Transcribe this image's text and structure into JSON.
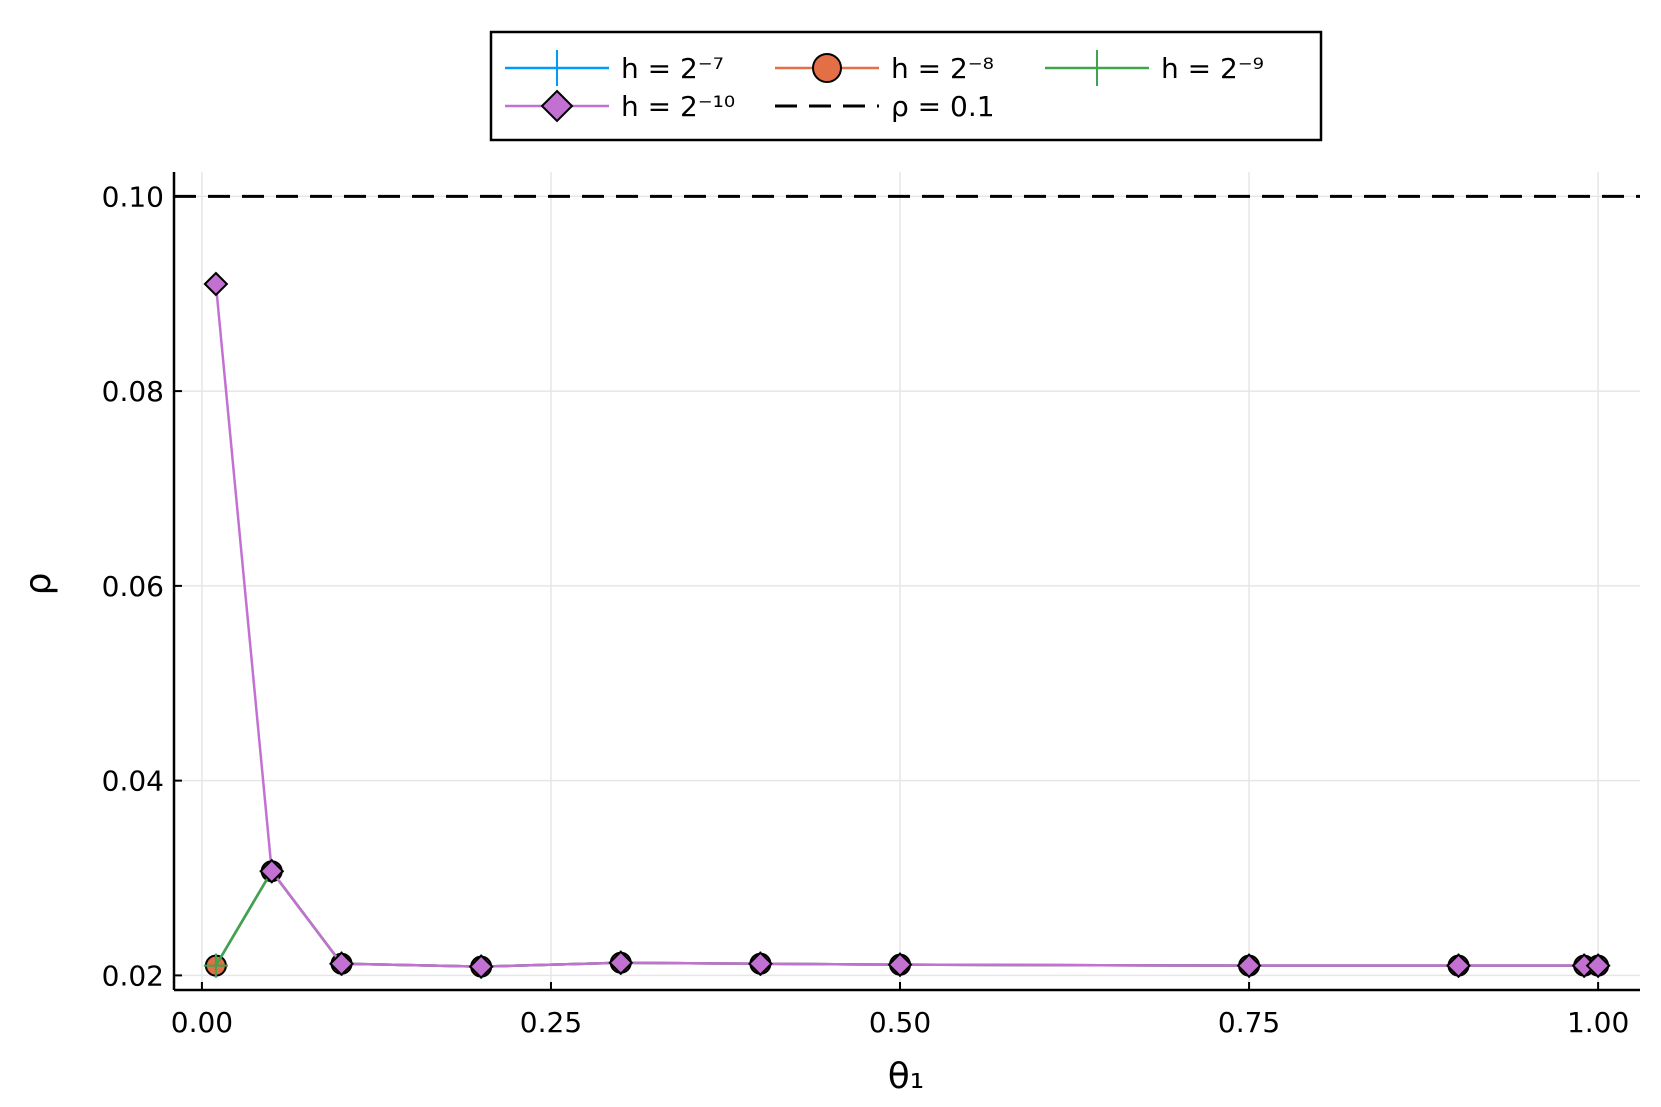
{
  "chart_data": {
    "type": "line",
    "xlabel": "θ₁",
    "ylabel": "ρ",
    "xlim": [
      -0.02,
      1.03
    ],
    "ylim": [
      0.0185,
      0.1025
    ],
    "xticks": [
      0.0,
      0.25,
      0.5,
      0.75,
      1.0
    ],
    "xtick_labels": [
      "0.00",
      "0.25",
      "0.50",
      "0.75",
      "1.00"
    ],
    "yticks": [
      0.02,
      0.04,
      0.06,
      0.08,
      0.1
    ],
    "ytick_labels": [
      "0.02",
      "0.04",
      "0.06",
      "0.08",
      "0.10"
    ],
    "grid": true,
    "legend_position": "top (outside plot)",
    "x": [
      0.01,
      0.05,
      0.1,
      0.2,
      0.3,
      0.4,
      0.5,
      0.75,
      0.9,
      0.99,
      1.0
    ],
    "series": [
      {
        "name": "h = 2⁻⁷",
        "color": "#009AFA",
        "marker": "cross",
        "values": [
          0.021,
          0.0307,
          0.0212,
          0.0209,
          0.0213,
          0.0212,
          0.0211,
          0.021,
          0.021,
          0.021,
          0.021
        ]
      },
      {
        "name": "h =  2⁻⁸",
        "color": "#E26F46",
        "marker": "circle",
        "values": [
          0.021,
          0.0307,
          0.0212,
          0.0209,
          0.0213,
          0.0212,
          0.0211,
          0.021,
          0.021,
          0.021,
          0.021
        ]
      },
      {
        "name": "h =  2⁻⁹",
        "color": "#3EA44E",
        "marker": "cross",
        "values": [
          0.021,
          0.0307,
          0.0212,
          0.0209,
          0.0213,
          0.0212,
          0.0211,
          0.021,
          0.021,
          0.021,
          0.021
        ]
      },
      {
        "name": "h =  2⁻¹⁰",
        "color": "#C271D2",
        "marker": "diamond",
        "values": [
          0.091,
          0.0307,
          0.0212,
          0.0209,
          0.0213,
          0.0212,
          0.0211,
          0.021,
          0.021,
          0.021,
          0.021
        ]
      }
    ],
    "reference_line": {
      "name": "ρ = 0.1",
      "y": 0.1,
      "color": "#000000",
      "style": "dashed"
    }
  }
}
